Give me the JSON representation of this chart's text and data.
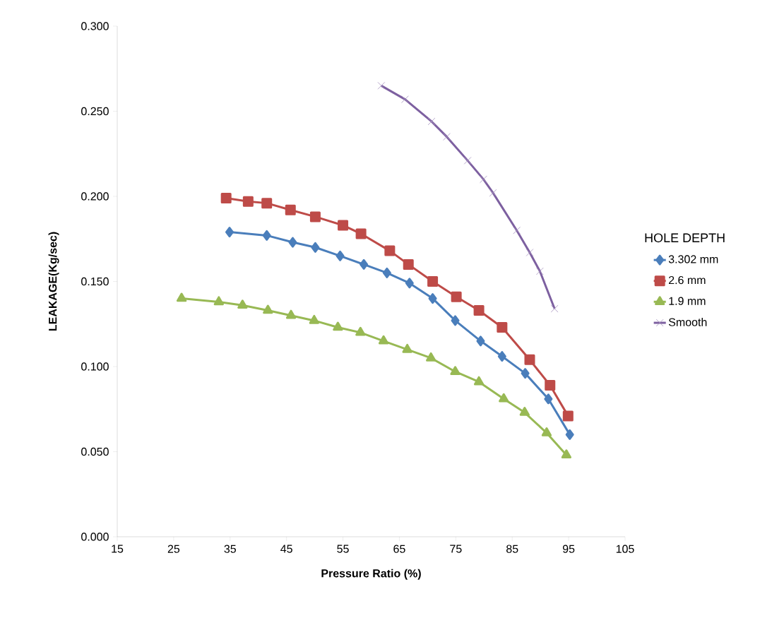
{
  "chart_data": {
    "type": "line",
    "xlabel": "Pressure Ratio (%)",
    "ylabel": "LEAKAGE(Kg/sec)",
    "legend_title": "HOLE DEPTH",
    "legend": "right",
    "xlim": [
      15,
      105
    ],
    "xticks": [
      15,
      25,
      35,
      45,
      55,
      65,
      75,
      85,
      95,
      105
    ],
    "ylim": [
      0,
      0.3
    ],
    "yticks": [
      {
        "value": 0,
        "label": "0.000"
      },
      {
        "value": 0.05,
        "label": "0.050"
      },
      {
        "value": 0.1,
        "label": "0.100"
      },
      {
        "value": 0.15,
        "label": "0.150"
      },
      {
        "value": 0.2,
        "label": "0.200"
      },
      {
        "value": 0.25,
        "label": "0.250"
      },
      {
        "value": 0.3,
        "label": "0.300"
      }
    ],
    "grid": false,
    "series": [
      {
        "name": "3.302 mm",
        "color": "#4a7ebb",
        "marker": "diamond",
        "x": [
          34.9,
          41.5,
          46.1,
          50.1,
          54.5,
          58.7,
          62.8,
          66.8,
          70.9,
          74.9,
          79.4,
          83.2,
          87.3,
          91.4,
          95.2
        ],
        "values": [
          0.179,
          0.177,
          0.173,
          0.17,
          0.165,
          0.16,
          0.155,
          0.149,
          0.14,
          0.127,
          0.115,
          0.106,
          0.096,
          0.081,
          0.06
        ]
      },
      {
        "name": "2.6 mm",
        "color": "#be4b48",
        "marker": "square",
        "x": [
          34.3,
          38.2,
          41.5,
          45.7,
          50.1,
          55.0,
          58.2,
          63.3,
          66.6,
          70.9,
          75.1,
          79.1,
          83.2,
          88.1,
          91.7,
          94.9
        ],
        "values": [
          0.199,
          0.197,
          0.196,
          0.192,
          0.188,
          0.183,
          0.178,
          0.168,
          0.16,
          0.15,
          0.141,
          0.133,
          0.123,
          0.104,
          0.089,
          0.071
        ]
      },
      {
        "name": "1.9 mm",
        "color": "#98b954",
        "marker": "triangle",
        "x": [
          26.4,
          33.0,
          37.2,
          41.7,
          45.8,
          49.9,
          54.1,
          58.1,
          62.2,
          66.4,
          70.6,
          74.9,
          79.1,
          83.5,
          87.2,
          91.1,
          94.6
        ],
        "values": [
          0.14,
          0.138,
          0.136,
          0.133,
          0.13,
          0.127,
          0.123,
          0.12,
          0.115,
          0.11,
          0.105,
          0.097,
          0.091,
          0.081,
          0.073,
          0.061,
          0.048
        ]
      },
      {
        "name": "Smooth",
        "color": "#7d60a0",
        "marker": "cross",
        "x": [
          61.8,
          66.0,
          70.7,
          73.4,
          77.1,
          79.9,
          81.6,
          85.8,
          88.1,
          89.9,
          92.5
        ],
        "values": [
          0.265,
          0.257,
          0.244,
          0.235,
          0.221,
          0.21,
          0.202,
          0.18,
          0.167,
          0.156,
          0.134
        ]
      }
    ]
  }
}
